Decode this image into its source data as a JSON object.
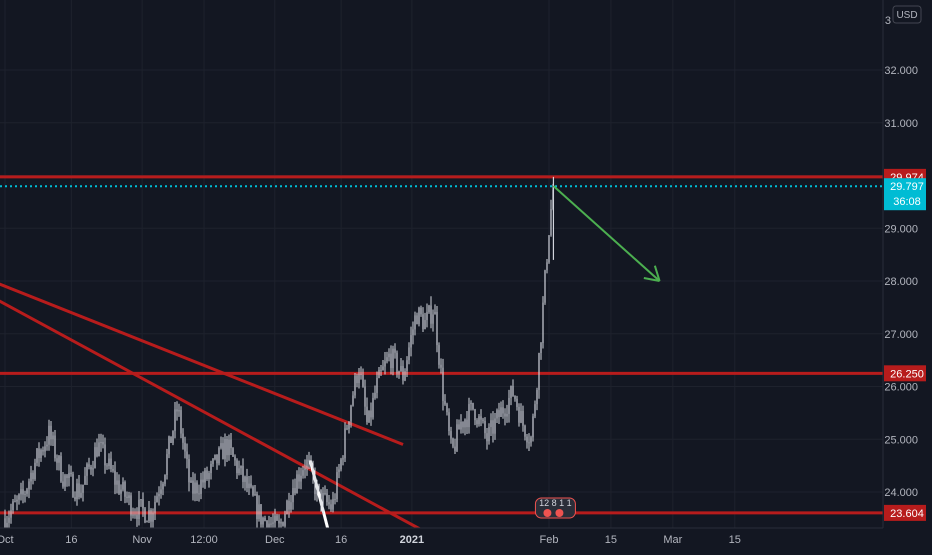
{
  "chart_data": {
    "type": "candlestick",
    "currency": "USD",
    "y_range": [
      23.0,
      33.0
    ],
    "y_ticks": [
      "24.000",
      "25.000",
      "26.000",
      "27.000",
      "28.000",
      "29.000",
      "31.000",
      "32.000"
    ],
    "y_top_partial_label": "3",
    "x_ticks": [
      {
        "label": "Oct",
        "date": "2020-10-01"
      },
      {
        "label": "16",
        "date": "2020-10-16"
      },
      {
        "label": "Nov",
        "date": "2020-11-01"
      },
      {
        "label": "12:00",
        "date": "2020-11-15"
      },
      {
        "label": "Dec",
        "date": "2020-12-01"
      },
      {
        "label": "16",
        "date": "2020-12-16"
      },
      {
        "label": "2021",
        "date": "2021-01-01"
      },
      {
        "label": "Feb",
        "date": "2021-02-01"
      },
      {
        "label": "15",
        "date": "2021-02-15"
      },
      {
        "label": "Mar",
        "date": "2021-03-01"
      },
      {
        "label": "15",
        "date": "2021-03-15"
      }
    ],
    "price_path": [
      [
        "2020-10-01",
        23.5
      ],
      [
        "2020-10-05",
        23.9
      ],
      [
        "2020-10-08",
        24.6
      ],
      [
        "2020-10-11",
        25.1
      ],
      [
        "2020-10-14",
        24.3
      ],
      [
        "2020-10-18",
        24.0
      ],
      [
        "2020-10-22",
        24.9
      ],
      [
        "2020-10-26",
        24.2
      ],
      [
        "2020-10-30",
        23.7
      ],
      [
        "2020-11-03",
        23.6
      ],
      [
        "2020-11-06",
        24.4
      ],
      [
        "2020-11-09",
        25.6
      ],
      [
        "2020-11-12",
        24.0
      ],
      [
        "2020-11-16",
        24.3
      ],
      [
        "2020-11-20",
        24.9
      ],
      [
        "2020-11-24",
        24.2
      ],
      [
        "2020-11-28",
        23.5
      ],
      [
        "2020-12-02",
        23.3
      ],
      [
        "2020-12-05",
        24.1
      ],
      [
        "2020-12-08",
        24.6
      ],
      [
        "2020-12-11",
        23.9
      ],
      [
        "2020-12-14",
        23.7
      ],
      [
        "2020-12-16",
        24.6
      ],
      [
        "2020-12-18",
        25.6
      ],
      [
        "2020-12-20",
        26.4
      ],
      [
        "2020-12-22",
        25.2
      ],
      [
        "2020-12-24",
        26.0
      ],
      [
        "2020-12-27",
        26.6
      ],
      [
        "2020-12-30",
        26.2
      ],
      [
        "2021-01-02",
        27.4
      ],
      [
        "2021-01-04",
        27.2
      ],
      [
        "2021-01-06",
        27.5
      ],
      [
        "2021-01-08",
        25.9
      ],
      [
        "2021-01-10",
        24.7
      ],
      [
        "2021-01-12",
        25.3
      ],
      [
        "2021-01-15",
        25.6
      ],
      [
        "2021-01-18",
        25.0
      ],
      [
        "2021-01-21",
        25.5
      ],
      [
        "2021-01-24",
        25.9
      ],
      [
        "2021-01-26",
        25.3
      ],
      [
        "2021-01-28",
        25.0
      ],
      [
        "2021-01-29",
        25.9
      ],
      [
        "2021-01-30",
        26.8
      ],
      [
        "2021-01-31",
        27.9
      ],
      [
        "2021-02-01",
        29.0
      ],
      [
        "2021-02-02",
        29.797
      ]
    ],
    "price_high": 29.974,
    "last_price": 29.797,
    "countdown": "36:08",
    "levels": [
      {
        "label": "29.974",
        "price": 29.974,
        "color": "#b71c1c"
      },
      {
        "label": "26.250",
        "price": 26.25,
        "color": "#b71c1c"
      },
      {
        "label": "23.604",
        "price": 23.604,
        "color": "#b71c1c"
      }
    ],
    "last_price_label": "29.797",
    "last_price_color": "#00bcd4",
    "trendlines": [
      {
        "color": "#b71c1c",
        "from": [
          "2020-09-28",
          28.0
        ],
        "to": [
          "2020-12-30",
          24.9
        ]
      },
      {
        "color": "#b71c1c",
        "from": [
          "2020-09-28",
          27.7
        ],
        "to": [
          "2021-01-05",
          23.2
        ]
      },
      {
        "color": "#ffffff",
        "from": [
          "2020-12-09",
          24.6
        ],
        "to": [
          "2020-12-13",
          23.3
        ]
      }
    ],
    "arrow": {
      "color": "#4caf50",
      "from": [
        "2021-02-02",
        29.8
      ],
      "to": [
        "2021-02-26",
        28.0
      ]
    },
    "event_badge_text": "12 8 1 1",
    "colors": {
      "background": "#131722",
      "grid": "#1e222d",
      "text": "#b2b5be",
      "candle": "#d1d4dc"
    }
  }
}
